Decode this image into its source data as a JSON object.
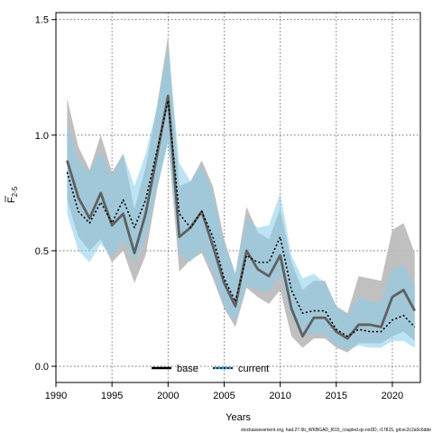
{
  "chart_data": {
    "type": "line",
    "xlabel": "Years",
    "ylabel_main": "F",
    "ylabel_sub": "2-5",
    "xlim": [
      1990,
      2022.5
    ],
    "ylim": [
      -0.07,
      1.53
    ],
    "xticks": [
      1990,
      1995,
      2000,
      2005,
      2010,
      2015,
      2020
    ],
    "yticks": [
      0.0,
      0.5,
      1.0,
      1.5
    ],
    "ytick_labels": [
      "0.0",
      "0.5",
      "1.0",
      "1.5"
    ],
    "grid": true,
    "legend_position": "bottom-center",
    "x": [
      1991,
      1992,
      1993,
      1994,
      1995,
      1996,
      1997,
      1998,
      1999,
      2000,
      2001,
      2002,
      2003,
      2004,
      2005,
      2006,
      2007,
      2008,
      2009,
      2010,
      2011,
      2012,
      2013,
      2014,
      2015,
      2016,
      2017,
      2018,
      2019,
      2020,
      2021,
      2022
    ],
    "series": [
      {
        "name": "base",
        "color": "#606060",
        "band_color": "#bdbdbd",
        "values": [
          0.89,
          0.73,
          0.64,
          0.75,
          0.61,
          0.66,
          0.49,
          0.66,
          0.91,
          1.17,
          0.56,
          0.6,
          0.67,
          0.52,
          0.36,
          0.26,
          0.5,
          0.42,
          0.39,
          0.48,
          0.25,
          0.13,
          0.21,
          0.21,
          0.15,
          0.12,
          0.18,
          0.18,
          0.17,
          0.3,
          0.33,
          0.24
        ],
        "lower": [
          0.72,
          0.56,
          0.5,
          0.55,
          0.45,
          0.5,
          0.36,
          0.48,
          0.76,
          0.98,
          0.41,
          0.46,
          0.49,
          0.38,
          0.25,
          0.17,
          0.34,
          0.3,
          0.27,
          0.33,
          0.13,
          0.08,
          0.12,
          0.12,
          0.08,
          0.06,
          0.1,
          0.1,
          0.1,
          0.13,
          0.15,
          0.11
        ],
        "upper": [
          1.16,
          0.95,
          0.85,
          1.0,
          0.84,
          0.92,
          0.68,
          0.86,
          1.12,
          1.43,
          0.78,
          0.8,
          0.89,
          0.78,
          0.55,
          0.4,
          0.69,
          0.58,
          0.55,
          0.68,
          0.45,
          0.33,
          0.37,
          0.37,
          0.26,
          0.23,
          0.39,
          0.38,
          0.37,
          0.59,
          0.62,
          0.49
        ]
      },
      {
        "name": "current",
        "color": "#000000",
        "band_color": "#87ceeb",
        "values": [
          0.84,
          0.67,
          0.62,
          0.71,
          0.62,
          0.72,
          0.6,
          0.72,
          0.93,
          1.15,
          0.66,
          0.6,
          0.67,
          0.56,
          0.38,
          0.28,
          0.48,
          0.45,
          0.45,
          0.56,
          0.33,
          0.23,
          0.24,
          0.24,
          0.16,
          0.13,
          0.16,
          0.15,
          0.15,
          0.2,
          0.22,
          0.17
        ],
        "lower": [
          0.66,
          0.5,
          0.45,
          0.53,
          0.47,
          0.55,
          0.45,
          0.55,
          0.77,
          0.96,
          0.49,
          0.45,
          0.51,
          0.41,
          0.26,
          0.19,
          0.35,
          0.33,
          0.32,
          0.4,
          0.22,
          0.14,
          0.14,
          0.14,
          0.09,
          0.07,
          0.09,
          0.08,
          0.08,
          0.11,
          0.11,
          0.08
        ],
        "upper": [
          1.06,
          0.89,
          0.84,
          0.93,
          0.82,
          0.92,
          0.78,
          0.92,
          1.12,
          1.39,
          0.88,
          0.8,
          0.87,
          0.75,
          0.53,
          0.4,
          0.64,
          0.6,
          0.61,
          0.75,
          0.48,
          0.38,
          0.4,
          0.36,
          0.26,
          0.22,
          0.3,
          0.28,
          0.28,
          0.42,
          0.44,
          0.35
        ]
      }
    ],
    "footnote": "stockassessment.org, had.27.6b_WKBGAD_f615_coupled.qs.noDD, r17815, git:ec2c2a0c6dde"
  }
}
